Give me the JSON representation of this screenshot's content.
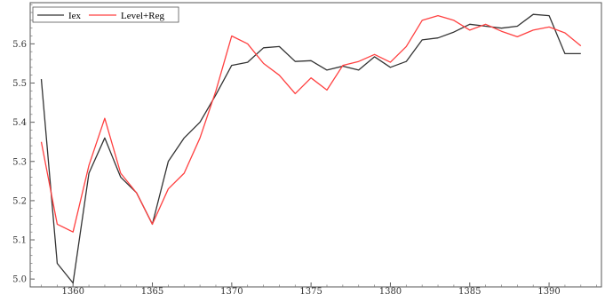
{
  "chart_data": {
    "type": "line",
    "title": "",
    "xlabel": "",
    "ylabel": "",
    "xlim": [
      1357.3,
      1393.3
    ],
    "ylim": [
      4.98,
      5.705
    ],
    "grid": false,
    "legend_position": "top-left",
    "x_ticks": [
      1360,
      1365,
      1370,
      1375,
      1380,
      1385,
      1390
    ],
    "y_ticks": [
      5.0,
      5.1,
      5.2,
      5.3,
      5.4,
      5.5,
      5.6
    ],
    "x_tick_labels": [
      "1360",
      "1365",
      "1370",
      "1375",
      "1380",
      "1385",
      "1390"
    ],
    "y_tick_labels": [
      "5.0",
      "5.1",
      "5.2",
      "5.3",
      "5.4",
      "5.5",
      "5.6"
    ],
    "x": [
      1358,
      1359,
      1360,
      1361,
      1362,
      1363,
      1364,
      1365,
      1366,
      1367,
      1368,
      1369,
      1370,
      1371,
      1372,
      1373,
      1374,
      1375,
      1376,
      1377,
      1378,
      1379,
      1380,
      1381,
      1382,
      1383,
      1384,
      1385,
      1386,
      1387,
      1388,
      1389,
      1390,
      1391,
      1392
    ],
    "series": [
      {
        "name": "Iex",
        "color": "#333333",
        "values": [
          5.51,
          5.04,
          4.99,
          5.27,
          5.36,
          5.26,
          5.22,
          5.14,
          5.3,
          5.36,
          5.4,
          5.47,
          5.545,
          5.553,
          5.59,
          5.593,
          5.555,
          5.557,
          5.533,
          5.543,
          5.533,
          5.567,
          5.54,
          5.555,
          5.61,
          5.615,
          5.63,
          5.65,
          5.645,
          5.64,
          5.645,
          5.675,
          5.672,
          5.575,
          5.575
        ]
      },
      {
        "name": "Level+Reg",
        "color": "#ff4040",
        "values": [
          5.35,
          5.14,
          5.12,
          5.29,
          5.41,
          5.27,
          5.22,
          5.14,
          5.23,
          5.27,
          5.36,
          5.48,
          5.62,
          5.6,
          5.55,
          5.52,
          5.473,
          5.513,
          5.482,
          5.545,
          5.555,
          5.573,
          5.553,
          5.593,
          5.66,
          5.672,
          5.66,
          5.635,
          5.65,
          5.632,
          5.618,
          5.635,
          5.643,
          5.628,
          5.595
        ]
      }
    ]
  }
}
